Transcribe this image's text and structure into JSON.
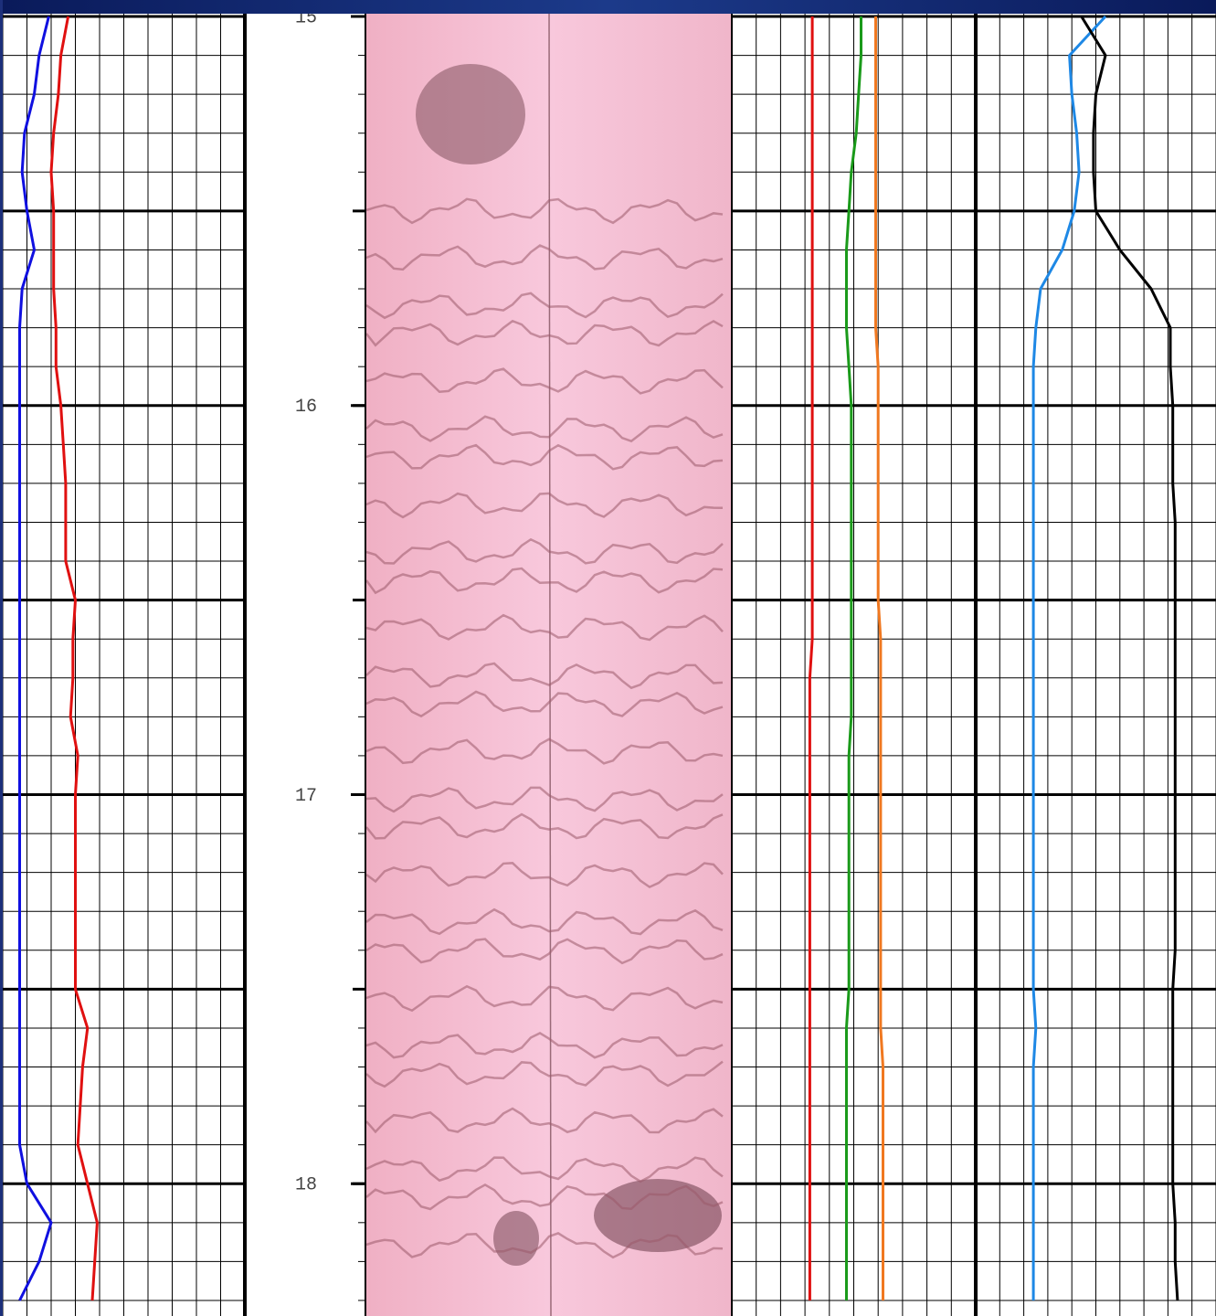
{
  "chart_data": {
    "type": "well-log",
    "depth": [
      15.0,
      15.1,
      15.2,
      15.3,
      15.4,
      15.5,
      15.6,
      15.7,
      15.8,
      15.9,
      16.0,
      16.1,
      16.2,
      16.3,
      16.4,
      16.5,
      16.6,
      16.7,
      16.8,
      16.9,
      17.0,
      17.1,
      17.2,
      17.3,
      17.4,
      17.5,
      17.6,
      17.7,
      17.8,
      17.9,
      18.0,
      18.1,
      18.2,
      18.3
    ],
    "ylim": [
      15,
      18.34
    ],
    "yticks": [
      15,
      16,
      17,
      18
    ],
    "grid": true,
    "tracks": [
      {
        "xlim": [
          0,
          10
        ],
        "series": [
          {
            "color": "#1010e0",
            "values": [
              1.9,
              1.5,
              1.3,
              0.9,
              0.8,
              1.0,
              1.3,
              0.8,
              0.7,
              0.7,
              0.7,
              0.7,
              0.7,
              0.7,
              0.7,
              0.7,
              0.7,
              0.7,
              0.7,
              0.7,
              0.7,
              0.7,
              0.7,
              0.7,
              0.7,
              0.7,
              0.7,
              0.7,
              0.7,
              0.7,
              1.0,
              2.0,
              1.5,
              0.7
            ]
          },
          {
            "color": "#e01010",
            "values": [
              2.7,
              2.4,
              2.3,
              2.1,
              2.0,
              2.1,
              2.1,
              2.1,
              2.2,
              2.2,
              2.4,
              2.5,
              2.6,
              2.6,
              2.6,
              3.0,
              2.9,
              2.9,
              2.8,
              3.1,
              3.0,
              3.0,
              3.0,
              3.0,
              3.0,
              3.0,
              3.5,
              3.3,
              3.2,
              3.1,
              3.5,
              3.9,
              3.8,
              3.7
            ]
          }
        ]
      },
      {
        "xlim": [
          0,
          10
        ],
        "series": [
          {
            "color": "#e01010",
            "values": [
              3.3,
              3.3,
              3.3,
              3.3,
              3.3,
              3.3,
              3.3,
              3.3,
              3.3,
              3.3,
              3.3,
              3.3,
              3.3,
              3.3,
              3.3,
              3.3,
              3.3,
              3.2,
              3.2,
              3.2,
              3.2,
              3.2,
              3.2,
              3.2,
              3.2,
              3.2,
              3.2,
              3.2,
              3.2,
              3.2,
              3.2,
              3.2,
              3.2,
              3.2
            ]
          },
          {
            "color": "#1a9a1a",
            "values": [
              5.3,
              5.3,
              5.2,
              5.1,
              4.9,
              4.8,
              4.7,
              4.7,
              4.7,
              4.8,
              4.9,
              4.9,
              4.9,
              4.9,
              4.9,
              4.9,
              4.9,
              4.9,
              4.9,
              4.8,
              4.8,
              4.8,
              4.8,
              4.8,
              4.8,
              4.8,
              4.7,
              4.7,
              4.7,
              4.7,
              4.7,
              4.7,
              4.7,
              4.7
            ]
          },
          {
            "color": "#f07820",
            "values": [
              5.9,
              5.9,
              5.9,
              5.9,
              5.9,
              5.9,
              5.9,
              5.9,
              5.9,
              6.0,
              6.0,
              6.0,
              6.0,
              6.0,
              6.0,
              6.0,
              6.1,
              6.1,
              6.1,
              6.1,
              6.1,
              6.1,
              6.1,
              6.1,
              6.1,
              6.1,
              6.1,
              6.2,
              6.2,
              6.2,
              6.2,
              6.2,
              6.2,
              6.2
            ]
          }
        ]
      },
      {
        "xlim": [
          0,
          10
        ],
        "series": [
          {
            "color": "#1e88e5",
            "values": [
              5.4,
              3.9,
              4.0,
              4.2,
              4.3,
              4.1,
              3.6,
              2.7,
              2.5,
              2.4,
              2.4,
              2.4,
              2.4,
              2.4,
              2.4,
              2.4,
              2.4,
              2.4,
              2.4,
              2.4,
              2.4,
              2.4,
              2.4,
              2.4,
              2.4,
              2.4,
              2.5,
              2.4,
              2.4,
              2.4,
              2.4,
              2.4,
              2.4,
              2.4
            ]
          },
          {
            "color": "#000000",
            "values": [
              4.4,
              5.4,
              5.0,
              4.9,
              4.9,
              5.0,
              6.0,
              7.3,
              8.1,
              8.1,
              8.2,
              8.2,
              8.2,
              8.3,
              8.3,
              8.3,
              8.3,
              8.3,
              8.3,
              8.3,
              8.3,
              8.3,
              8.3,
              8.3,
              8.3,
              8.2,
              8.2,
              8.2,
              8.2,
              8.2,
              8.2,
              8.3,
              8.3,
              8.4
            ]
          }
        ]
      }
    ]
  }
}
